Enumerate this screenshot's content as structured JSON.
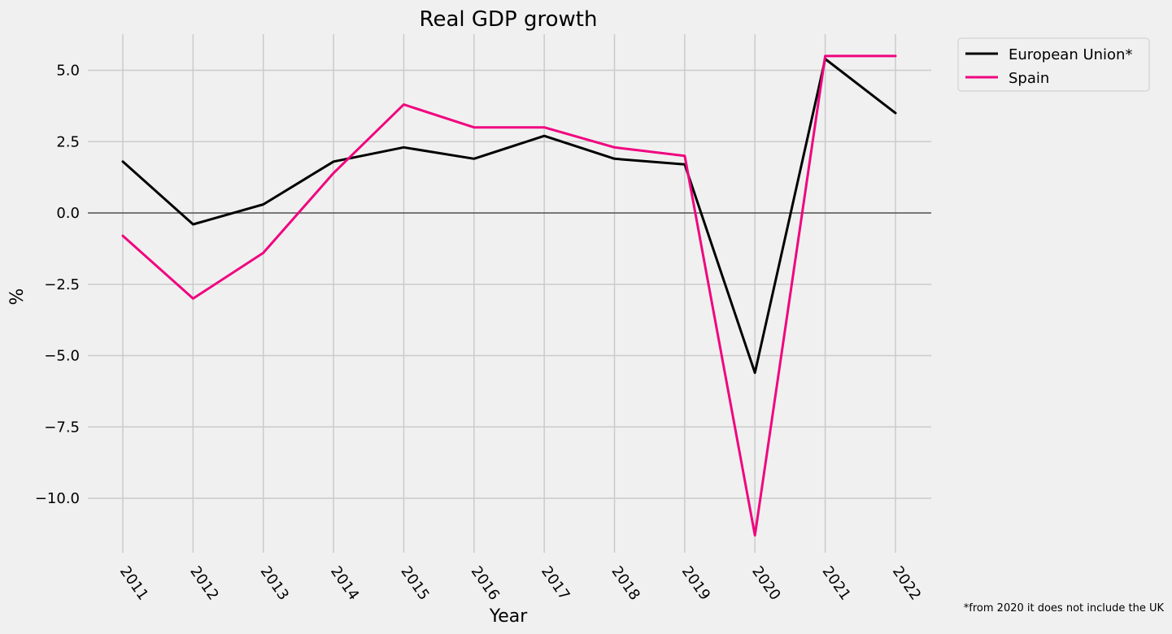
{
  "chart_data": {
    "type": "line",
    "title": "Real GDP growth",
    "xlabel": "Year",
    "ylabel": "%",
    "x": [
      2011,
      2012,
      2013,
      2014,
      2015,
      2016,
      2017,
      2018,
      2019,
      2020,
      2021,
      2022
    ],
    "yticks": [
      -10.0,
      -7.5,
      -5.0,
      -2.5,
      0.0,
      2.5,
      5.0
    ],
    "ytick_labels": [
      "−10.0",
      "−7.5",
      "−5.0",
      "−2.5",
      "0.0",
      "2.5",
      "5.0"
    ],
    "ylim": [
      -12.0,
      6.3
    ],
    "grid": true,
    "zero_line": true,
    "legend_position": "outside top-right",
    "series": [
      {
        "name": "European Union*",
        "color": "#000000",
        "values": [
          1.8,
          -0.4,
          0.3,
          1.8,
          2.3,
          1.9,
          2.7,
          1.9,
          1.7,
          -5.6,
          5.4,
          3.5
        ]
      },
      {
        "name": "Spain",
        "color": "#f0047f",
        "values": [
          -0.8,
          -3.0,
          -1.4,
          1.4,
          3.8,
          3.0,
          3.0,
          2.3,
          2.0,
          -11.3,
          5.5,
          5.5
        ]
      }
    ],
    "footnote": "*from 2020 it does not include the UK"
  }
}
